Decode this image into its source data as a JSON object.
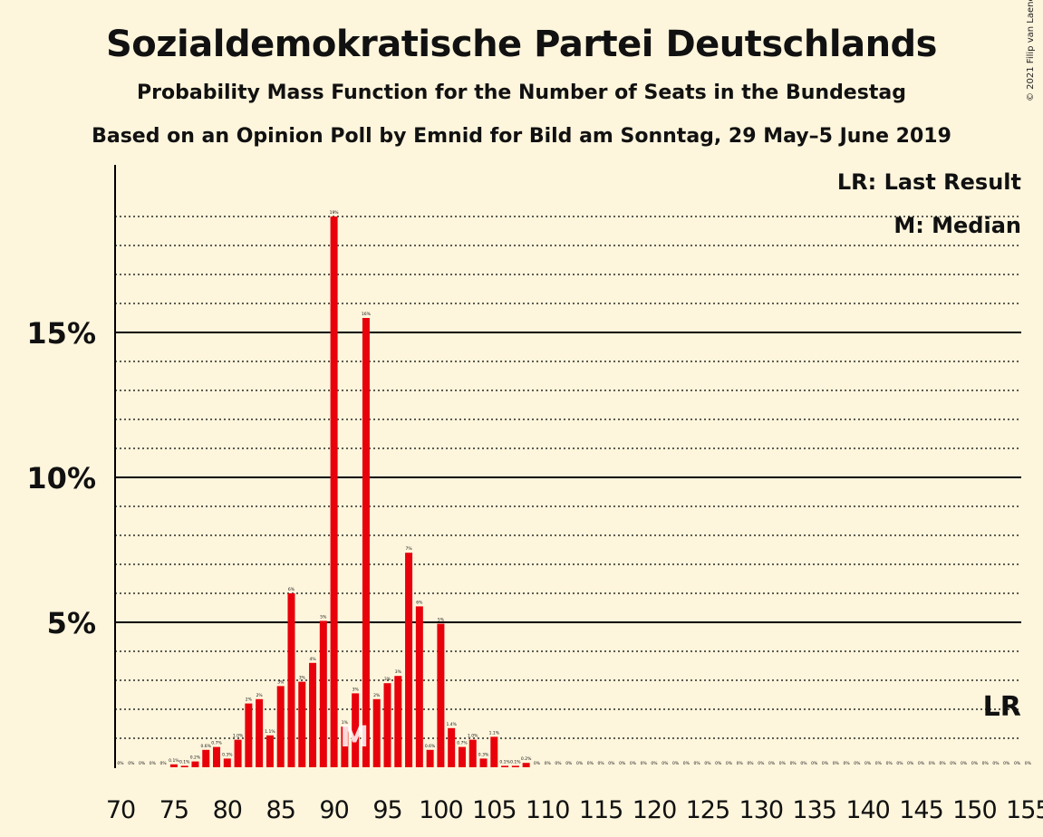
{
  "title": "Sozialdemokratische Partei Deutschlands",
  "subtitle": "Probability Mass Function for the Number of Seats in the Bundestag",
  "subtitle2": "Based on an Opinion Poll by Emnid for Bild am Sonntag, 29 May–5 June 2019",
  "copyright": "© 2021 Filip van Laenen",
  "legend": {
    "last_result": "LR: Last Result",
    "median": "M: Median"
  },
  "colors": {
    "bar": "#e8000b",
    "background": "#fdf5dc",
    "text": "#111111"
  },
  "chart_data": {
    "type": "bar",
    "xlim": [
      70,
      155
    ],
    "ylim": [
      0,
      20
    ],
    "x_ticks": [
      70,
      75,
      80,
      85,
      90,
      95,
      100,
      105,
      110,
      115,
      120,
      125,
      130,
      135,
      140,
      145,
      150,
      155
    ],
    "y_ticks": [
      {
        "value": 5,
        "label": "5%"
      },
      {
        "value": 10,
        "label": "10%"
      },
      {
        "value": 15,
        "label": "15%"
      }
    ],
    "median_seat": 92,
    "median_label": "M",
    "last_result_seat": 153,
    "last_result_label": "LR",
    "bars": [
      {
        "x": 70,
        "y": 0,
        "label": "0%"
      },
      {
        "x": 71,
        "y": 0,
        "label": "0%"
      },
      {
        "x": 72,
        "y": 0,
        "label": "0%"
      },
      {
        "x": 73,
        "y": 0,
        "label": "0%"
      },
      {
        "x": 74,
        "y": 0,
        "label": "0%"
      },
      {
        "x": 75,
        "y": 0.1,
        "label": "0.1%"
      },
      {
        "x": 76,
        "y": 0.05,
        "label": "0.1%"
      },
      {
        "x": 77,
        "y": 0.2,
        "label": "0.2%"
      },
      {
        "x": 78,
        "y": 0.6,
        "label": "0.6%"
      },
      {
        "x": 79,
        "y": 0.7,
        "label": "0.7%"
      },
      {
        "x": 80,
        "y": 0.3,
        "label": "0.3%"
      },
      {
        "x": 81,
        "y": 0.95,
        "label": "1.0%"
      },
      {
        "x": 82,
        "y": 2.2,
        "label": "2%"
      },
      {
        "x": 83,
        "y": 2.35,
        "label": "2%"
      },
      {
        "x": 84,
        "y": 1.1,
        "label": "1.1%"
      },
      {
        "x": 85,
        "y": 2.8,
        "label": "3%"
      },
      {
        "x": 86,
        "y": 6.0,
        "label": "6%"
      },
      {
        "x": 87,
        "y": 2.95,
        "label": "3%"
      },
      {
        "x": 88,
        "y": 3.6,
        "label": "4%"
      },
      {
        "x": 89,
        "y": 5.05,
        "label": "5%"
      },
      {
        "x": 90,
        "y": 19.0,
        "label": "19%"
      },
      {
        "x": 91,
        "y": 1.4,
        "label": "1%"
      },
      {
        "x": 92,
        "y": 2.55,
        "label": "3%"
      },
      {
        "x": 93,
        "y": 15.5,
        "label": "16%"
      },
      {
        "x": 94,
        "y": 2.35,
        "label": "2%"
      },
      {
        "x": 95,
        "y": 2.9,
        "label": "3%"
      },
      {
        "x": 96,
        "y": 3.15,
        "label": "3%"
      },
      {
        "x": 97,
        "y": 7.4,
        "label": "7%"
      },
      {
        "x": 98,
        "y": 5.55,
        "label": "6%"
      },
      {
        "x": 99,
        "y": 0.6,
        "label": "0.6%"
      },
      {
        "x": 100,
        "y": 4.95,
        "label": "5%"
      },
      {
        "x": 101,
        "y": 1.35,
        "label": "1.4%"
      },
      {
        "x": 102,
        "y": 0.7,
        "label": "0.7%"
      },
      {
        "x": 103,
        "y": 0.95,
        "label": "1.0%"
      },
      {
        "x": 104,
        "y": 0.3,
        "label": "0.3%"
      },
      {
        "x": 105,
        "y": 1.05,
        "label": "1.1%"
      },
      {
        "x": 106,
        "y": 0.05,
        "label": "0.1%"
      },
      {
        "x": 107,
        "y": 0.05,
        "label": "0.1%"
      },
      {
        "x": 108,
        "y": 0.15,
        "label": "0.2%"
      },
      {
        "x": 109,
        "y": 0,
        "label": "0%"
      },
      {
        "x": 110,
        "y": 0,
        "label": "0%"
      },
      {
        "x": 111,
        "y": 0,
        "label": "0%"
      },
      {
        "x": 112,
        "y": 0,
        "label": "0%"
      },
      {
        "x": 113,
        "y": 0,
        "label": "0%"
      },
      {
        "x": 114,
        "y": 0,
        "label": "0%"
      },
      {
        "x": 115,
        "y": 0,
        "label": "0%"
      },
      {
        "x": 116,
        "y": 0,
        "label": "0%"
      },
      {
        "x": 117,
        "y": 0,
        "label": "0%"
      },
      {
        "x": 118,
        "y": 0,
        "label": "0%"
      },
      {
        "x": 119,
        "y": 0,
        "label": "0%"
      },
      {
        "x": 120,
        "y": 0,
        "label": "0%"
      },
      {
        "x": 121,
        "y": 0,
        "label": "0%"
      },
      {
        "x": 122,
        "y": 0,
        "label": "0%"
      },
      {
        "x": 123,
        "y": 0,
        "label": "0%"
      },
      {
        "x": 124,
        "y": 0,
        "label": "0%"
      },
      {
        "x": 125,
        "y": 0,
        "label": "0%"
      },
      {
        "x": 126,
        "y": 0,
        "label": "0%"
      },
      {
        "x": 127,
        "y": 0,
        "label": "0%"
      },
      {
        "x": 128,
        "y": 0,
        "label": "0%"
      },
      {
        "x": 129,
        "y": 0,
        "label": "0%"
      },
      {
        "x": 130,
        "y": 0,
        "label": "0%"
      },
      {
        "x": 131,
        "y": 0,
        "label": "0%"
      },
      {
        "x": 132,
        "y": 0,
        "label": "0%"
      },
      {
        "x": 133,
        "y": 0,
        "label": "0%"
      },
      {
        "x": 134,
        "y": 0,
        "label": "0%"
      },
      {
        "x": 135,
        "y": 0,
        "label": "0%"
      },
      {
        "x": 136,
        "y": 0,
        "label": "0%"
      },
      {
        "x": 137,
        "y": 0,
        "label": "0%"
      },
      {
        "x": 138,
        "y": 0,
        "label": "0%"
      },
      {
        "x": 139,
        "y": 0,
        "label": "0%"
      },
      {
        "x": 140,
        "y": 0,
        "label": "0%"
      },
      {
        "x": 141,
        "y": 0,
        "label": "0%"
      },
      {
        "x": 142,
        "y": 0,
        "label": "0%"
      },
      {
        "x": 143,
        "y": 0,
        "label": "0%"
      },
      {
        "x": 144,
        "y": 0,
        "label": "0%"
      },
      {
        "x": 145,
        "y": 0,
        "label": "0%"
      },
      {
        "x": 146,
        "y": 0,
        "label": "0%"
      },
      {
        "x": 147,
        "y": 0,
        "label": "0%"
      },
      {
        "x": 148,
        "y": 0,
        "label": "0%"
      },
      {
        "x": 149,
        "y": 0,
        "label": "0%"
      },
      {
        "x": 150,
        "y": 0,
        "label": "0%"
      },
      {
        "x": 151,
        "y": 0,
        "label": "0%"
      },
      {
        "x": 152,
        "y": 0,
        "label": "0%"
      },
      {
        "x": 153,
        "y": 0,
        "label": "0%"
      },
      {
        "x": 154,
        "y": 0,
        "label": "0%"
      },
      {
        "x": 155,
        "y": 0,
        "label": "0%"
      }
    ]
  }
}
